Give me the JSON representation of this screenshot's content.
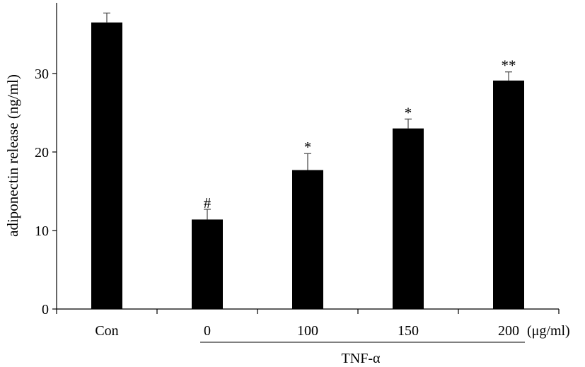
{
  "chart_data": {
    "type": "bar",
    "categories": [
      "Con",
      "0",
      "100",
      "150",
      "200"
    ],
    "values": [
      36.5,
      11.4,
      17.7,
      23.0,
      29.1
    ],
    "errors": [
      1.2,
      1.3,
      2.1,
      1.2,
      1.1
    ],
    "annotations": [
      "",
      "#",
      "*",
      "*",
      "**"
    ],
    "ylabel": "adiponectin release (ng/ml)",
    "x_unit": "(μg/ml)",
    "group": {
      "label": "TNF-α",
      "from": 1,
      "to": 4
    },
    "yticks": [
      0,
      10,
      20,
      30
    ],
    "ylim": [
      0,
      39
    ],
    "grid": false,
    "legend": false,
    "bar_color": "#000000",
    "error_color": "#444444"
  }
}
